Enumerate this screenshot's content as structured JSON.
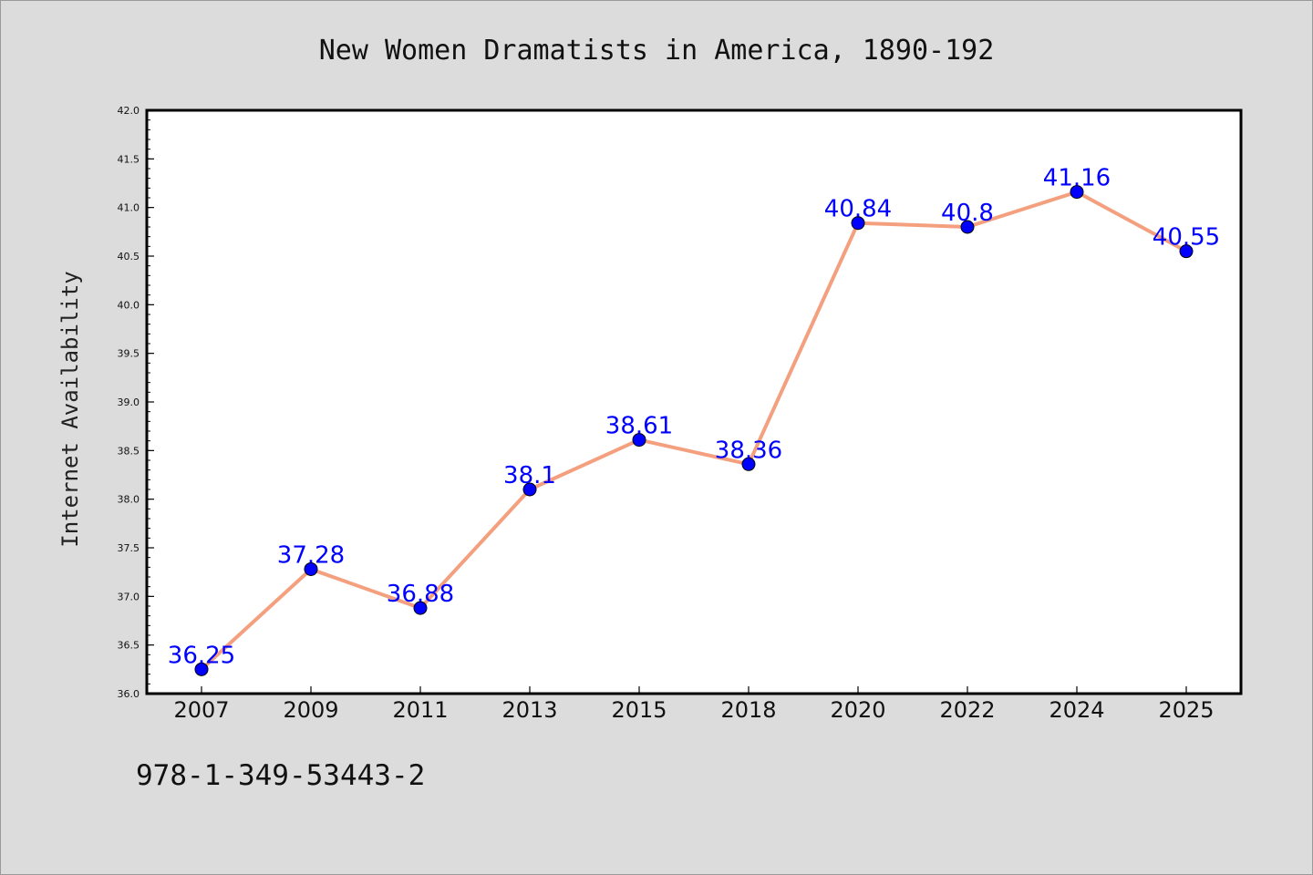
{
  "chart_data": {
    "type": "line",
    "title": "New Women Dramatists in America, 1890-192",
    "xlabel": "",
    "ylabel": "Internet Availability",
    "categories": [
      "2007",
      "2009",
      "2011",
      "2013",
      "2015",
      "2018",
      "2020",
      "2022",
      "2024",
      "2025"
    ],
    "series": [
      {
        "values": [
          36.25,
          37.28,
          36.88,
          38.1,
          38.61,
          38.36,
          40.84,
          40.8,
          41.16,
          40.55
        ],
        "data_labels": [
          "36.25",
          "37.28",
          "36.88",
          "38.1",
          "38.61",
          "38.36",
          "40.84",
          "40.8",
          "41.16",
          "40.55"
        ]
      }
    ],
    "ylim": [
      36.0,
      42.0
    ],
    "yticks": [
      "36.0",
      "36.5",
      "37.0",
      "37.5",
      "38.0",
      "38.5",
      "39.0",
      "39.5",
      "40.0",
      "40.5",
      "41.0",
      "41.5",
      "42.0"
    ],
    "grid": false,
    "legend": "none",
    "colors": {
      "line": "#f4a07f",
      "marker": "#0000ff",
      "data_label": "#0000ff",
      "background": "#dcdcdc",
      "plot_area": "#ffffff"
    }
  },
  "footer": {
    "isbn": "978-1-349-53443-2"
  }
}
